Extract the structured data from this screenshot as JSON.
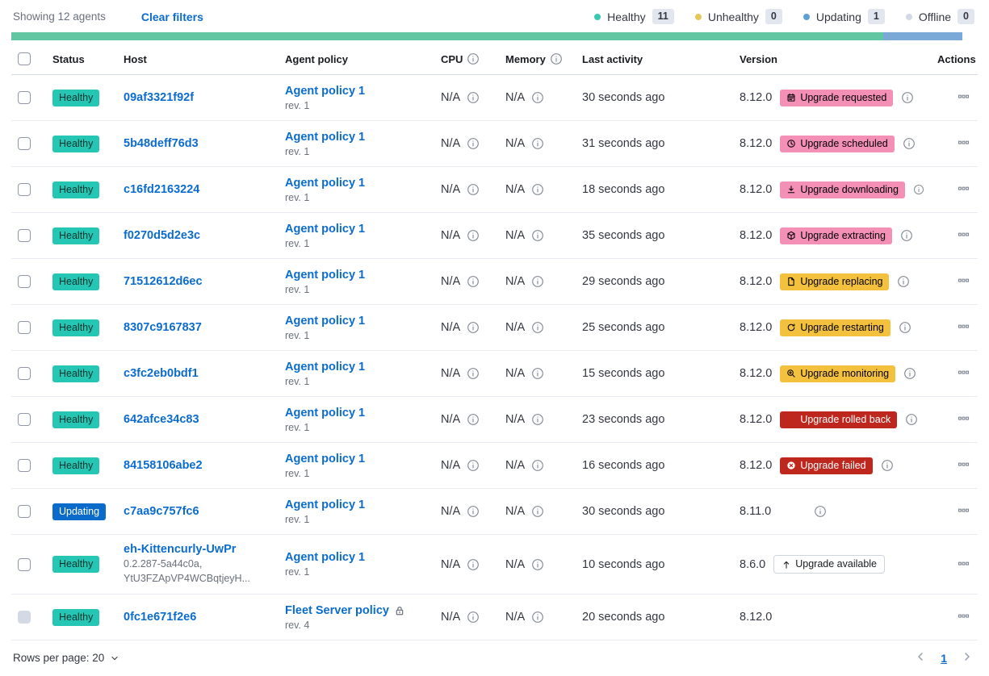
{
  "topbar": {
    "showing": "Showing 12 agents",
    "clear_filters": "Clear filters",
    "legend": [
      {
        "label": "Healthy",
        "count": "11",
        "dot": "#38c9b1"
      },
      {
        "label": "Unhealthy",
        "count": "0",
        "dot": "#e7c65a"
      },
      {
        "label": "Updating",
        "count": "1",
        "dot": "#5f9fd8"
      },
      {
        "label": "Offline",
        "count": "0",
        "dot": "#d3dae6"
      }
    ]
  },
  "health_bar": {
    "segments": [
      {
        "name": "healthy",
        "color": "#62c6a3",
        "flex": 11
      },
      {
        "name": "updating",
        "color": "#7aa9d8",
        "flex": 1
      }
    ]
  },
  "colors": {
    "link": "#0b6cce",
    "healthy-badge": "#26c6b4",
    "updating-badge": "#0b6bcb",
    "pink-badge": "#f48fb5",
    "yellow-badge": "#f3c13e",
    "danger-badge": "#bd271e"
  },
  "table": {
    "headers": {
      "status": "Status",
      "host": "Host",
      "policy": "Agent policy",
      "cpu": "CPU",
      "memory": "Memory",
      "last_activity": "Last activity",
      "version": "Version",
      "actions": "Actions"
    },
    "rows": [
      {
        "status": "Healthy",
        "status_variant": "healthy",
        "host": "09af3321f92f",
        "host_sub": null,
        "policy": "Agent policy 1",
        "policy_rev": "rev. 1",
        "policy_locked": false,
        "cpu": "N/A",
        "memory": "N/A",
        "last_activity": "30 seconds ago",
        "version": "8.12.0",
        "upgrade": {
          "label": "Upgrade requested",
          "icon": "calendar",
          "variant": "pink"
        },
        "version_info": true,
        "checkbox_disabled": false
      },
      {
        "status": "Healthy",
        "status_variant": "healthy",
        "host": "5b48deff76d3",
        "host_sub": null,
        "policy": "Agent policy 1",
        "policy_rev": "rev. 1",
        "policy_locked": false,
        "cpu": "N/A",
        "memory": "N/A",
        "last_activity": "31 seconds ago",
        "version": "8.12.0",
        "upgrade": {
          "label": "Upgrade scheduled",
          "icon": "clock",
          "variant": "pink"
        },
        "version_info": true,
        "checkbox_disabled": false
      },
      {
        "status": "Healthy",
        "status_variant": "healthy",
        "host": "c16fd2163224",
        "host_sub": null,
        "policy": "Agent policy 1",
        "policy_rev": "rev. 1",
        "policy_locked": false,
        "cpu": "N/A",
        "memory": "N/A",
        "last_activity": "18 seconds ago",
        "version": "8.12.0",
        "upgrade": {
          "label": "Upgrade downloading",
          "icon": "download",
          "variant": "pink"
        },
        "version_info": true,
        "checkbox_disabled": false
      },
      {
        "status": "Healthy",
        "status_variant": "healthy",
        "host": "f0270d5d2e3c",
        "host_sub": null,
        "policy": "Agent policy 1",
        "policy_rev": "rev. 1",
        "policy_locked": false,
        "cpu": "N/A",
        "memory": "N/A",
        "last_activity": "35 seconds ago",
        "version": "8.12.0",
        "upgrade": {
          "label": "Upgrade extracting",
          "icon": "package",
          "variant": "pink"
        },
        "version_info": true,
        "checkbox_disabled": false
      },
      {
        "status": "Healthy",
        "status_variant": "healthy",
        "host": "71512612d6ec",
        "host_sub": null,
        "policy": "Agent policy 1",
        "policy_rev": "rev. 1",
        "policy_locked": false,
        "cpu": "N/A",
        "memory": "N/A",
        "last_activity": "29 seconds ago",
        "version": "8.12.0",
        "upgrade": {
          "label": "Upgrade replacing",
          "icon": "document",
          "variant": "yellow"
        },
        "version_info": true,
        "checkbox_disabled": false
      },
      {
        "status": "Healthy",
        "status_variant": "healthy",
        "host": "8307c9167837",
        "host_sub": null,
        "policy": "Agent policy 1",
        "policy_rev": "rev. 1",
        "policy_locked": false,
        "cpu": "N/A",
        "memory": "N/A",
        "last_activity": "25 seconds ago",
        "version": "8.12.0",
        "upgrade": {
          "label": "Upgrade restarting",
          "icon": "refresh",
          "variant": "yellow"
        },
        "version_info": true,
        "checkbox_disabled": false
      },
      {
        "status": "Healthy",
        "status_variant": "healthy",
        "host": "c3fc2eb0bdf1",
        "host_sub": null,
        "policy": "Agent policy 1",
        "policy_rev": "rev. 1",
        "policy_locked": false,
        "cpu": "N/A",
        "memory": "N/A",
        "last_activity": "15 seconds ago",
        "version": "8.12.0",
        "upgrade": {
          "label": "Upgrade monitoring",
          "icon": "inspect",
          "variant": "yellow"
        },
        "version_info": true,
        "checkbox_disabled": false
      },
      {
        "status": "Healthy",
        "status_variant": "healthy",
        "host": "642afce34c83",
        "host_sub": null,
        "policy": "Agent policy 1",
        "policy_rev": "rev. 1",
        "policy_locked": false,
        "cpu": "N/A",
        "memory": "N/A",
        "last_activity": "23 seconds ago",
        "version": "8.12.0",
        "upgrade": {
          "label": "Upgrade rolled back",
          "icon": "return",
          "variant": "red"
        },
        "version_info": true,
        "checkbox_disabled": false
      },
      {
        "status": "Healthy",
        "status_variant": "healthy",
        "host": "84158106abe2",
        "host_sub": null,
        "policy": "Agent policy 1",
        "policy_rev": "rev. 1",
        "policy_locked": false,
        "cpu": "N/A",
        "memory": "N/A",
        "last_activity": "16 seconds ago",
        "version": "8.12.0",
        "upgrade": {
          "label": "Upgrade failed",
          "icon": "error",
          "variant": "red"
        },
        "version_info": true,
        "checkbox_disabled": false
      },
      {
        "status": "Updating",
        "status_variant": "updating",
        "host": "c7aa9c757fc6",
        "host_sub": null,
        "policy": "Agent policy 1",
        "policy_rev": "rev. 1",
        "policy_locked": false,
        "cpu": "N/A",
        "memory": "N/A",
        "last_activity": "30 seconds ago",
        "version": "8.11.0",
        "upgrade": null,
        "version_info": true,
        "checkbox_disabled": false
      },
      {
        "status": "Healthy",
        "status_variant": "healthy",
        "host": "eh-Kittencurly-UwPr",
        "host_sub": [
          "0.2.287-5a44c0a,",
          "YtU3FZApVP4WCBqtjeyH..."
        ],
        "policy": "Agent policy 1",
        "policy_rev": "rev. 1",
        "policy_locked": false,
        "cpu": "N/A",
        "memory": "N/A",
        "last_activity": "10 seconds ago",
        "version": "8.6.0",
        "upgrade": {
          "label": "Upgrade available",
          "icon": "upArrow",
          "variant": "outline"
        },
        "version_info": false,
        "checkbox_disabled": false
      },
      {
        "status": "Healthy",
        "status_variant": "healthy",
        "host": "0fc1e671f2e6",
        "host_sub": null,
        "policy": "Fleet Server policy",
        "policy_rev": "rev. 4",
        "policy_locked": true,
        "cpu": "N/A",
        "memory": "N/A",
        "last_activity": "20 seconds ago",
        "version": "8.12.0",
        "upgrade": null,
        "version_info": false,
        "checkbox_disabled": true
      }
    ]
  },
  "footer": {
    "rows_per_page": "Rows per page: 20",
    "page": "1"
  }
}
